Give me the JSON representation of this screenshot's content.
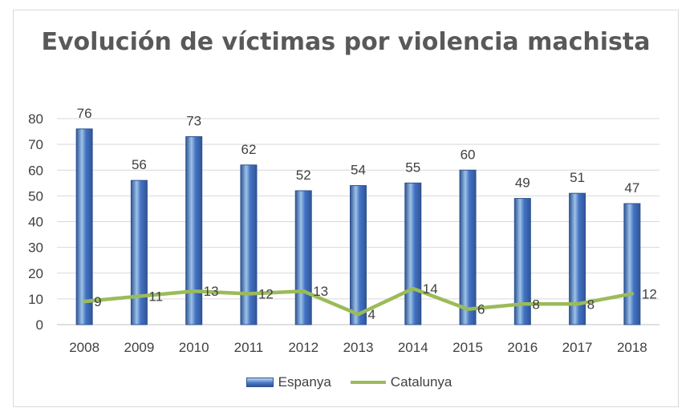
{
  "chart_data": {
    "type": "bar",
    "title": "Evolución de víctimas por violencia machista",
    "categories": [
      "2008",
      "2009",
      "2010",
      "2011",
      "2012",
      "2013",
      "2014",
      "2015",
      "2016",
      "2017",
      "2018"
    ],
    "series": [
      {
        "name": "Espanya",
        "type": "bar",
        "color": "#4472c4",
        "values": [
          76,
          56,
          73,
          62,
          52,
          54,
          55,
          60,
          49,
          51,
          47
        ]
      },
      {
        "name": "Catalunya",
        "type": "line",
        "color": "#9bbb59",
        "values": [
          9,
          11,
          13,
          12,
          13,
          4,
          14,
          6,
          8,
          8,
          12
        ]
      }
    ],
    "ylim": [
      0,
      80
    ],
    "yticks": [
      0,
      10,
      20,
      30,
      40,
      50,
      60,
      70,
      80
    ],
    "grid": true,
    "legend": "bottom"
  }
}
